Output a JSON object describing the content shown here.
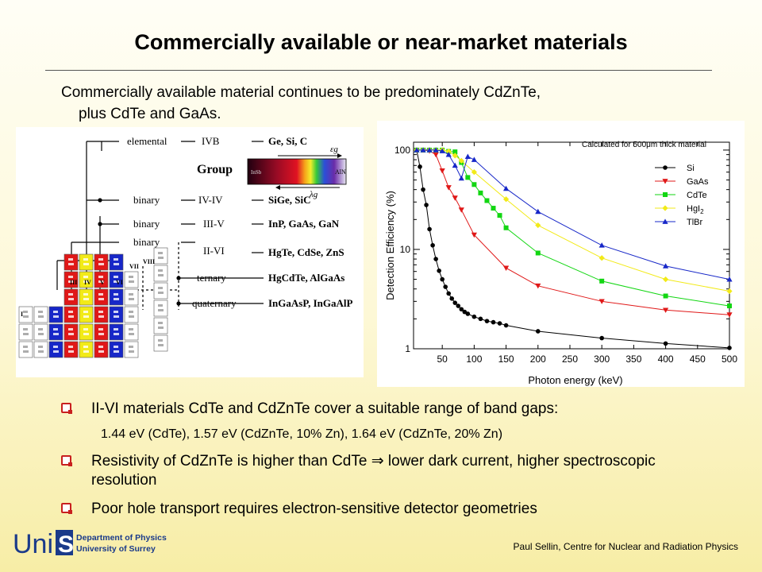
{
  "slide": {
    "title": "Commercially available or near-market materials",
    "intro_line1": "Commercially available material continues to be predominately CdZnTe,",
    "intro_line2": "plus CdTe and GaAs.",
    "bullets": [
      "II-VI materials CdTe and CdZnTe cover a suitable range of band gaps:",
      "Resistivity of CdZnTe is higher than CdTe ⇒ lower dark current, higher spectroscopic resolution",
      "Poor hole transport requires electron-sensitive detector geometries"
    ],
    "sub_bullet": "1.44 eV (CdTe), 1.57 eV (CdZnTe, 10% Zn), 1.64 eV (CdZnTe, 20% Zn)",
    "footer": "Paul Sellin, Centre for Nuclear and Radiation Physics",
    "logo": {
      "text": "Uni",
      "letter": "S",
      "line1": "Department of Physics",
      "line2": "University of Surrey"
    }
  },
  "diagram": {
    "group_label": "Group",
    "eg_label": "εg",
    "lambda_label": "λg",
    "spectrum_left": "InSb",
    "spectrum_right": "AlN",
    "rows": [
      {
        "kind": "elemental",
        "group": "IVB",
        "materials": "Ge, Si, C"
      },
      {
        "kind": "binary",
        "group": "IV-IV",
        "materials": "SiGe, SiC"
      },
      {
        "kind": "binary",
        "group": "III-V",
        "materials": "InP, GaAs, GaN"
      },
      {
        "kind": "binary",
        "group": "II-VI",
        "materials": "HgTe, CdSe, ZnS"
      },
      {
        "kind": "ternary",
        "group": "",
        "materials": "HgCdTe, AlGaAs"
      },
      {
        "kind": "quaternary",
        "group": "",
        "materials": "InGaAsP, InGaAlP"
      }
    ],
    "column_labels": [
      "I",
      "II",
      "III",
      "IV",
      "V",
      "VI",
      "VII",
      "VIII"
    ],
    "colors": {
      "II": "#1727c8",
      "III": "#e01818",
      "IV": "#f2ea18",
      "V": "#e01818",
      "VI": "#1727c8"
    }
  },
  "chart_data": {
    "type": "line",
    "annotation": "Calculated for 500μm thick material",
    "xlabel": "Photon energy (keV)",
    "ylabel": "Detection Efficiency (%)",
    "xlim": [
      5,
      500
    ],
    "ylim": [
      1,
      120
    ],
    "yscale": "log",
    "xticks": [
      50,
      100,
      150,
      200,
      250,
      300,
      350,
      400,
      450,
      500
    ],
    "yticks": [
      1,
      10,
      100
    ],
    "legend_position": "right",
    "series": [
      {
        "name": "Si",
        "color": "#000000",
        "marker": "circle",
        "x": [
          10,
          15,
          20,
          25,
          30,
          35,
          40,
          45,
          50,
          55,
          60,
          65,
          70,
          75,
          80,
          85,
          90,
          100,
          110,
          120,
          130,
          140,
          150,
          200,
          300,
          400,
          500
        ],
        "y": [
          100,
          68,
          40,
          28,
          16,
          11,
          8,
          6.1,
          5.0,
          4.2,
          3.6,
          3.2,
          2.9,
          2.7,
          2.5,
          2.35,
          2.25,
          2.1,
          2.0,
          1.9,
          1.85,
          1.8,
          1.72,
          1.5,
          1.28,
          1.13,
          1.02
        ]
      },
      {
        "name": "GaAs",
        "color": "#e01818",
        "marker": "triangle-down",
        "x": [
          10,
          20,
          30,
          40,
          50,
          60,
          70,
          80,
          100,
          150,
          200,
          300,
          400,
          500
        ],
        "y": [
          100,
          100,
          98,
          90,
          62,
          42,
          33,
          25,
          14,
          6.5,
          4.3,
          3.0,
          2.45,
          2.2
        ]
      },
      {
        "name": "CdTe",
        "color": "#12d612",
        "marker": "square",
        "x": [
          10,
          20,
          30,
          40,
          50,
          60,
          70,
          80,
          90,
          100,
          110,
          120,
          130,
          140,
          150,
          200,
          300,
          400,
          500
        ],
        "y": [
          100,
          100,
          100,
          100,
          100,
          97,
          96,
          75,
          53,
          45,
          37,
          31,
          26,
          22,
          16.5,
          9.2,
          4.8,
          3.4,
          2.7
        ]
      },
      {
        "name": "HgI2",
        "label_main": "HgI",
        "label_sub": "2",
        "color": "#f2ea18",
        "marker": "diamond",
        "x": [
          10,
          20,
          30,
          40,
          50,
          60,
          70,
          80,
          100,
          150,
          200,
          300,
          400,
          500
        ],
        "y": [
          100,
          100,
          100,
          100,
          100,
          97,
          88,
          78,
          60,
          32,
          17.5,
          8.2,
          5.0,
          3.8
        ]
      },
      {
        "name": "TlBr",
        "color": "#1727c8",
        "marker": "triangle-up",
        "x": [
          10,
          20,
          30,
          40,
          50,
          60,
          70,
          80,
          90,
          100,
          150,
          200,
          300,
          400,
          500
        ],
        "y": [
          100,
          100,
          100,
          100,
          98,
          90,
          70,
          52,
          86,
          80,
          41,
          24,
          11,
          6.8,
          5.0
        ]
      }
    ]
  }
}
